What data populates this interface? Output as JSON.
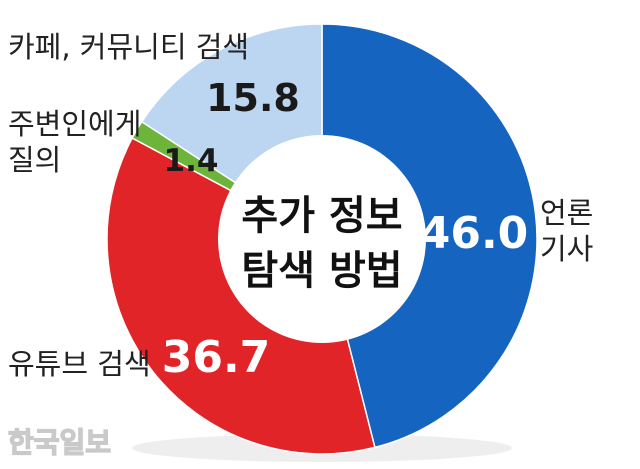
{
  "chart_data": {
    "type": "pie",
    "donut": true,
    "title_lines": [
      "추가 정보",
      "탐색 방법"
    ],
    "slices": [
      {
        "value": 46.0,
        "value_label": "46.0",
        "label_lines": [
          "언론",
          "기사"
        ],
        "color": "#1565c0",
        "label_color": "#ffffff"
      },
      {
        "value": 36.7,
        "value_label": "36.7",
        "label_lines": [
          "유튜브 검색"
        ],
        "color": "#e02428",
        "label_color": "#ffffff"
      },
      {
        "value": 1.4,
        "value_label": "1.4",
        "label_lines": [
          "주변인에게",
          "질의"
        ],
        "color": "#6db43a",
        "label_color": "#1a1a1a"
      },
      {
        "value": 15.8,
        "value_label": "15.8",
        "label_lines": [
          "카페, 커뮤니티 검색"
        ],
        "color": "#bcd6f2",
        "label_color": "#1a1a1a"
      }
    ]
  },
  "watermark": "한국일보"
}
